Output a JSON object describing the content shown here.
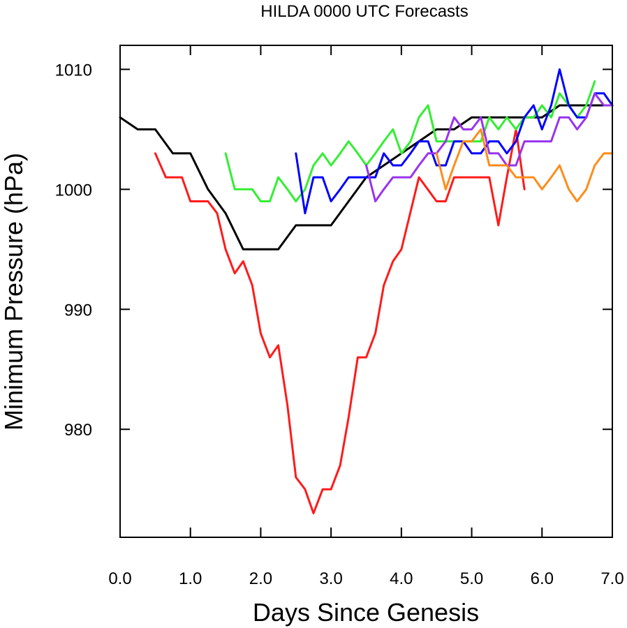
{
  "chart_data": {
    "type": "line",
    "title": "HILDA 0000 UTC Forecasts",
    "xlabel": "Days Since Genesis",
    "ylabel": "Minimum Pressure (hPa)",
    "xlim": [
      0,
      7
    ],
    "ylim": [
      971,
      1012
    ],
    "xticks": [
      "0.0",
      "1.0",
      "2.0",
      "3.0",
      "4.0",
      "5.0",
      "6.0",
      "7.0"
    ],
    "yticks": [
      "980",
      "990",
      "1000",
      "1010"
    ],
    "grid": false,
    "series": [
      {
        "color": "#000000",
        "x": [
          0,
          0.25,
          0.5,
          0.75,
          1.0,
          1.25,
          1.5,
          1.75,
          2.0,
          2.25,
          2.5,
          2.75,
          3.0,
          3.25,
          3.5,
          3.75,
          4.0,
          4.25,
          4.5,
          4.75,
          5.0,
          5.25,
          5.5,
          5.75,
          6.0,
          6.25,
          6.5,
          6.75,
          7.0
        ],
        "y": [
          1006,
          1005,
          1005,
          1003,
          1003,
          1000,
          998,
          995,
          995,
          995,
          997,
          997,
          997,
          999,
          1001,
          1002,
          1003,
          1004,
          1005,
          1005,
          1006,
          1006,
          1006,
          1006,
          1006,
          1007,
          1007,
          1007,
          1007
        ]
      },
      {
        "color": "#ff1a1a",
        "x": [
          0.5,
          0.65,
          0.88,
          1.0,
          1.25,
          1.38,
          1.5,
          1.63,
          1.75,
          1.88,
          2.0,
          2.13,
          2.25,
          2.38,
          2.5,
          2.63,
          2.75,
          2.88,
          3.0,
          3.13,
          3.25,
          3.38,
          3.5,
          3.63,
          3.75,
          3.88,
          4.0,
          4.25,
          4.5,
          4.63,
          4.75,
          5.0,
          5.25,
          5.38,
          5.5,
          5.63,
          5.75
        ],
        "y": [
          1003,
          1001,
          1001,
          999,
          999,
          998,
          995,
          993,
          994,
          992,
          988,
          986,
          987,
          982,
          976,
          975,
          973,
          975,
          975,
          977,
          981,
          986,
          986,
          988,
          992,
          994,
          995,
          1001,
          999,
          999,
          1001,
          1001,
          1001,
          997,
          1001,
          1005,
          1000
        ]
      },
      {
        "color": "#33ee33",
        "x": [
          1.5,
          1.63,
          1.75,
          1.88,
          2.0,
          2.13,
          2.25,
          2.38,
          2.5,
          2.63,
          2.75,
          2.88,
          3.0,
          3.13,
          3.25,
          3.38,
          3.5,
          3.63,
          3.75,
          3.88,
          4.0,
          4.13,
          4.25,
          4.38,
          4.5,
          4.63,
          4.75,
          4.88,
          5.0,
          5.13,
          5.25,
          5.38,
          5.5,
          5.63,
          5.75,
          5.88,
          6.0,
          6.13,
          6.25,
          6.38,
          6.5,
          6.63,
          6.75
        ],
        "y": [
          1003,
          1000,
          1000,
          1000,
          999,
          999,
          1001,
          1000,
          999,
          1000,
          1002,
          1003,
          1002,
          1003,
          1004,
          1003,
          1002,
          1003,
          1004,
          1005,
          1003,
          1004,
          1006,
          1007,
          1004,
          1004,
          1004,
          1004,
          1004,
          1004,
          1006,
          1005,
          1006,
          1005,
          1006,
          1006,
          1007,
          1006,
          1008,
          1007,
          1006,
          1007,
          1009
        ]
      },
      {
        "color": "#0000ff",
        "x": [
          2.5,
          2.63,
          2.75,
          2.88,
          3.0,
          3.13,
          3.25,
          3.38,
          3.5,
          3.63,
          3.75,
          3.88,
          4.0,
          4.13,
          4.25,
          4.38,
          4.5,
          4.63,
          4.75,
          4.88,
          5.0,
          5.13,
          5.25,
          5.38,
          5.5,
          5.63,
          5.75,
          5.88,
          6.0,
          6.13,
          6.25,
          6.38,
          6.5,
          6.63,
          6.75,
          6.88,
          7.0
        ],
        "y": [
          1003,
          998,
          1001,
          1001,
          999,
          1000,
          1001,
          1001,
          1001,
          1001,
          1003,
          1002,
          1002,
          1003,
          1004,
          1004,
          1002,
          1002,
          1004,
          1004,
          1003,
          1003,
          1004,
          1004,
          1003,
          1004,
          1006,
          1007,
          1005,
          1007,
          1010,
          1007,
          1006,
          1006,
          1008,
          1008,
          1007
        ]
      },
      {
        "color": "#9933ee",
        "x": [
          3.5,
          3.63,
          3.75,
          3.88,
          4.0,
          4.13,
          4.25,
          4.38,
          4.5,
          4.63,
          4.75,
          4.88,
          5.0,
          5.13,
          5.25,
          5.38,
          5.5,
          5.63,
          5.75,
          5.88,
          6.0,
          6.13,
          6.25,
          6.38,
          6.5,
          6.63,
          6.75,
          6.88,
          7.0
        ],
        "y": [
          1002,
          999,
          1000,
          1001,
          1001,
          1001,
          1002,
          1003,
          1003,
          1004,
          1006,
          1005,
          1005,
          1006,
          1003,
          1003,
          1002,
          1002,
          1004,
          1004,
          1004,
          1004,
          1006,
          1006,
          1005,
          1006,
          1008,
          1007,
          1007
        ]
      },
      {
        "color": "#ff8c1a",
        "x": [
          4.5,
          4.63,
          4.75,
          4.88,
          5.0,
          5.13,
          5.25,
          5.38,
          5.5,
          5.63,
          5.75,
          5.88,
          6.0,
          6.13,
          6.25,
          6.38,
          6.5,
          6.63,
          6.75,
          6.88,
          7.0
        ],
        "y": [
          1003,
          1000,
          1002,
          1004,
          1004,
          1005,
          1002,
          1002,
          1002,
          1001,
          1001,
          1001,
          1000,
          1001,
          1002,
          1000,
          999,
          1000,
          1002,
          1003,
          1003
        ]
      }
    ]
  }
}
